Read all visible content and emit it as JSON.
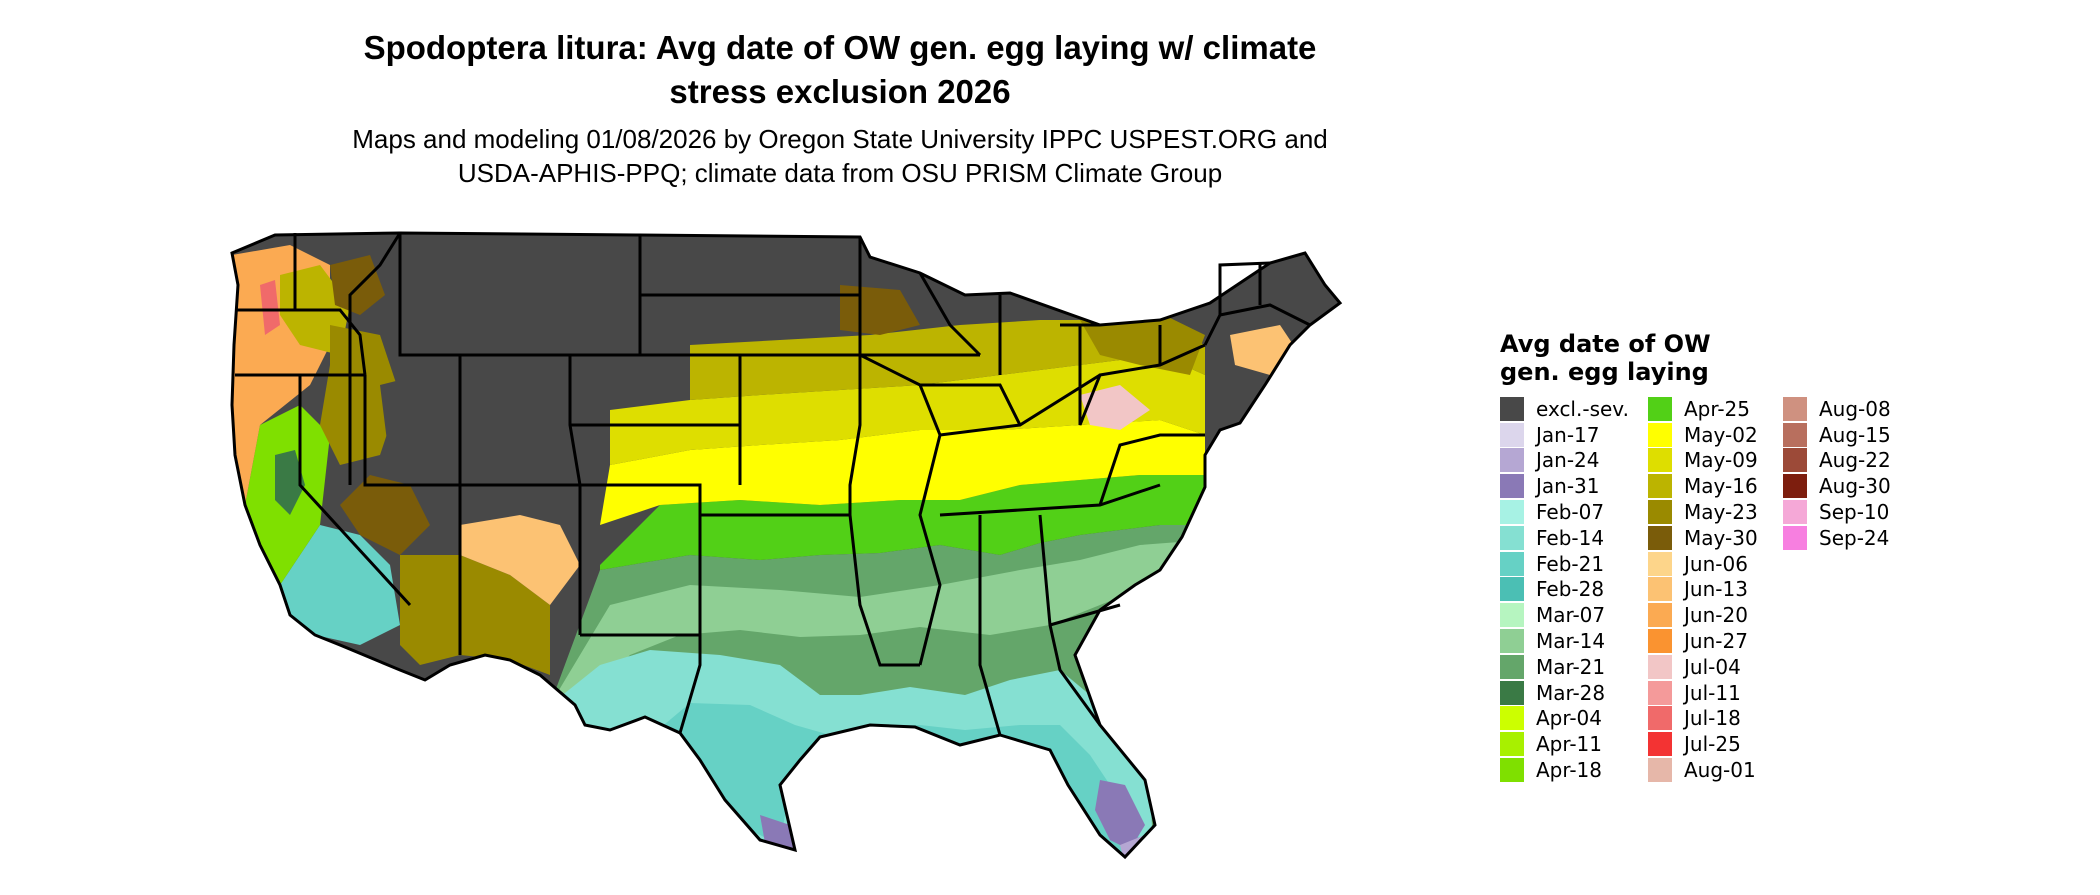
{
  "title_line1": "Spodoptera litura: Avg date of OW gen. egg laying w/ climate",
  "title_line2": "stress exclusion 2026",
  "subtitle_line1": "Maps and modeling 01/08/2026 by Oregon State University IPPC USPEST.ORG and",
  "subtitle_line2": "USDA-APHIS-PPQ; climate data from OSU PRISM Climate Group",
  "legend": {
    "title_line1": "Avg date of OW",
    "title_line2": "gen. egg laying",
    "columns": [
      [
        {
          "label": "excl.-sev.",
          "color": "#484848"
        },
        {
          "label": "Jan-17",
          "color": "#dcd6ec"
        },
        {
          "label": "Jan-24",
          "color": "#b5a7d3"
        },
        {
          "label": "Jan-31",
          "color": "#8a79b6"
        },
        {
          "label": "Feb-07",
          "color": "#a7f2e4"
        },
        {
          "label": "Feb-14",
          "color": "#85e0d2"
        },
        {
          "label": "Feb-21",
          "color": "#66d1c5"
        },
        {
          "label": "Feb-28",
          "color": "#4bbfb4"
        },
        {
          "label": "Mar-07",
          "color": "#b6f5c0"
        },
        {
          "label": "Mar-14",
          "color": "#8fcf94"
        },
        {
          "label": "Mar-21",
          "color": "#64a66a"
        },
        {
          "label": "Mar-28",
          "color": "#3a7a45"
        },
        {
          "label": "Apr-04",
          "color": "#ccff00"
        },
        {
          "label": "Apr-11",
          "color": "#a8f000"
        },
        {
          "label": "Apr-18",
          "color": "#7fe000"
        }
      ],
      [
        {
          "label": "Apr-25",
          "color": "#52d017"
        },
        {
          "label": "May-02",
          "color": "#ffff00"
        },
        {
          "label": "May-09",
          "color": "#dede00"
        },
        {
          "label": "May-16",
          "color": "#bcb400"
        },
        {
          "label": "May-23",
          "color": "#9a8a00"
        },
        {
          "label": "May-30",
          "color": "#7a5c0a"
        },
        {
          "label": "Jun-06",
          "color": "#fdd58a"
        },
        {
          "label": "Jun-13",
          "color": "#fcc273"
        },
        {
          "label": "Jun-20",
          "color": "#fbaa52"
        },
        {
          "label": "Jun-27",
          "color": "#fa9330"
        },
        {
          "label": "Jul-04",
          "color": "#f2c6c6"
        },
        {
          "label": "Jul-11",
          "color": "#f49a9a"
        },
        {
          "label": "Jul-18",
          "color": "#f06a6a"
        },
        {
          "label": "Jul-25",
          "color": "#f33333"
        },
        {
          "label": "Aug-01",
          "color": "#e6b7a9"
        }
      ],
      [
        {
          "label": "Aug-08",
          "color": "#cf9180"
        },
        {
          "label": "Aug-15",
          "color": "#b86f5e"
        },
        {
          "label": "Aug-22",
          "color": "#9c4a38"
        },
        {
          "label": "Aug-30",
          "color": "#7d1e0e"
        },
        {
          "label": "Sep-10",
          "color": "#f5a8d7"
        },
        {
          "label": "Sep-24",
          "color": "#f77fe0"
        }
      ]
    ]
  }
}
